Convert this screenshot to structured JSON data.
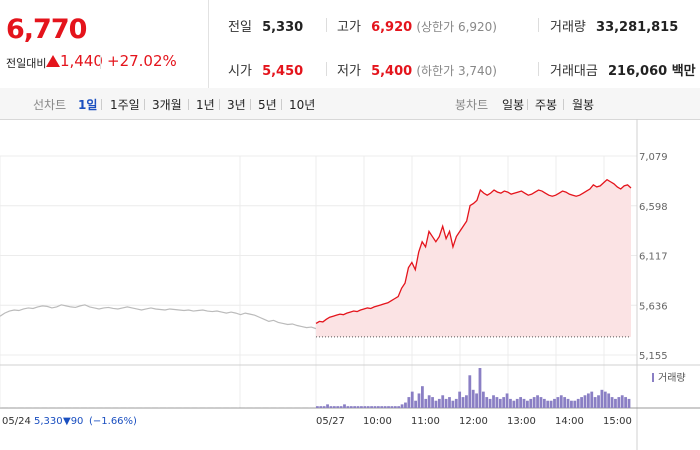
{
  "quote": {
    "current_price": "6,770",
    "change_label": "전일대비",
    "change_value": "1,440",
    "change_rate": "+27.02%"
  },
  "stats": {
    "prev_close_label": "전일",
    "prev_close": "5,330",
    "high_label": "고가",
    "high": "6,920",
    "upper_limit": "(상한가 6,920)",
    "volume_label": "거래량",
    "volume": "33,281,815",
    "open_label": "시가",
    "open": "5,450",
    "low_label": "저가",
    "low": "5,400",
    "lower_limit": "(하한가 3,740)",
    "amount_label": "거래대금",
    "amount": "216,060 백만"
  },
  "tabs": {
    "line_label": "선차트",
    "line_tabs": [
      "1일",
      "1주일",
      "3개월",
      "1년",
      "3년",
      "5년",
      "10년"
    ],
    "active_line_tab": 0,
    "candle_label": "봉차트",
    "candle_tabs": [
      "일봉",
      "주봉",
      "월봉"
    ]
  },
  "chart_data": {
    "type": "line",
    "y_ticks": [
      "7,079",
      "6,598",
      "6,117",
      "5,636",
      "5,155"
    ],
    "y_tick_values": [
      7079,
      6598,
      6117,
      5636,
      5155
    ],
    "ylim": [
      5155,
      7079
    ],
    "x_ticks": [
      "05/24",
      "05/27",
      "10:00",
      "11:00",
      "12:00",
      "13:00",
      "14:00",
      "15:00"
    ],
    "volume_legend": "거래량",
    "prev_day_info": {
      "date": "05/24",
      "close": "5,330",
      "change": "▼90",
      "rate": "(−1.66%)"
    },
    "prev_close_value": 5330,
    "colors": {
      "up": "#e4141c",
      "down": "#1a4fc0",
      "prev": "#bbbbbb",
      "volume": "#8a7fc4",
      "fill": "#fbe3e4"
    },
    "prev_day_series": [
      5530,
      5560,
      5580,
      5590,
      5585,
      5600,
      5610,
      5605,
      5620,
      5630,
      5625,
      5610,
      5620,
      5640,
      5630,
      5620,
      5615,
      5630,
      5640,
      5620,
      5610,
      5600,
      5610,
      5615,
      5605,
      5600,
      5610,
      5620,
      5610,
      5600,
      5590,
      5600,
      5610,
      5600,
      5595,
      5590,
      5600,
      5595,
      5590,
      5585,
      5590,
      5580,
      5585,
      5590,
      5580,
      5575,
      5580,
      5570,
      5560,
      5570,
      5560,
      5545,
      5560,
      5550,
      5540,
      5520,
      5500,
      5480,
      5490,
      5470,
      5460,
      5450,
      5455,
      5440,
      5430,
      5420,
      5425,
      5410
    ],
    "today_series": [
      5460,
      5480,
      5475,
      5500,
      5520,
      5530,
      5540,
      5550,
      5545,
      5560,
      5570,
      5580,
      5575,
      5590,
      5600,
      5610,
      5605,
      5620,
      5630,
      5640,
      5650,
      5660,
      5680,
      5700,
      5720,
      5800,
      5850,
      6000,
      6050,
      5980,
      6150,
      6250,
      6200,
      6350,
      6300,
      6250,
      6300,
      6400,
      6280,
      6350,
      6200,
      6300,
      6350,
      6400,
      6450,
      6600,
      6620,
      6650,
      6750,
      6720,
      6700,
      6720,
      6750,
      6730,
      6720,
      6740,
      6730,
      6710,
      6720,
      6730,
      6740,
      6720,
      6700,
      6710,
      6730,
      6750,
      6740,
      6720,
      6700,
      6690,
      6700,
      6720,
      6740,
      6730,
      6710,
      6700,
      6690,
      6700,
      6720,
      6740,
      6760,
      6800,
      6780,
      6790,
      6820,
      6850,
      6830,
      6810,
      6780,
      6760,
      6790,
      6800,
      6770
    ],
    "volume_bars": [
      1,
      1,
      1,
      2,
      1,
      1,
      1,
      1,
      2,
      1,
      1,
      1,
      1,
      1,
      1,
      1,
      1,
      1,
      1,
      1,
      1,
      1,
      1,
      1,
      1,
      2,
      3,
      6,
      9,
      4,
      8,
      12,
      5,
      7,
      6,
      4,
      5,
      7,
      5,
      6,
      4,
      5,
      9,
      6,
      7,
      18,
      10,
      8,
      22,
      9,
      6,
      5,
      7,
      6,
      5,
      6,
      8,
      5,
      4,
      5,
      6,
      5,
      4,
      5,
      6,
      7,
      6,
      5,
      4,
      4,
      5,
      6,
      7,
      6,
      5,
      4,
      4,
      5,
      6,
      7,
      8,
      9,
      6,
      7,
      10,
      9,
      8,
      6,
      5,
      6,
      7,
      6,
      5
    ]
  }
}
